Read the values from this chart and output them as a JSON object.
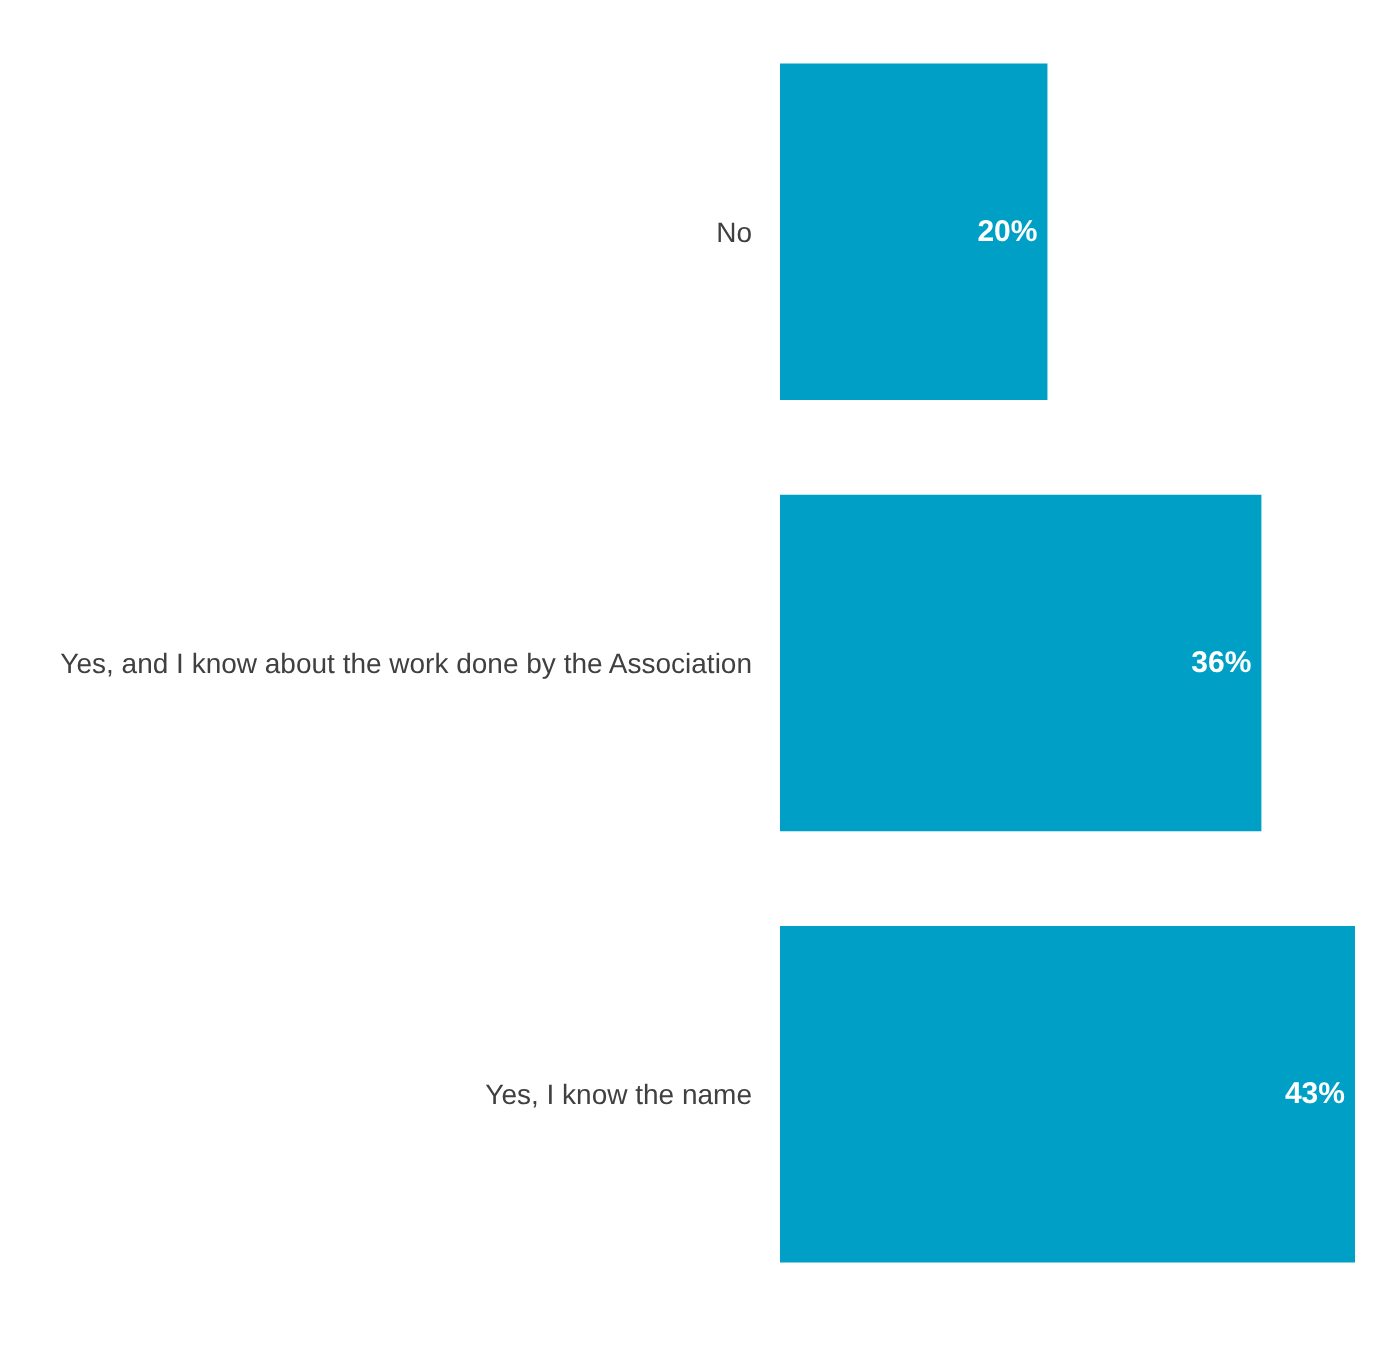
{
  "chart_data": {
    "type": "bar",
    "orientation": "horizontal",
    "categories": [
      "No",
      "Yes, and I know about the work done by the Association",
      "Yes, I know the name"
    ],
    "values": [
      20,
      36,
      43
    ],
    "value_labels": [
      "20%",
      "36%",
      "43%"
    ],
    "color": "#00a0c6"
  }
}
